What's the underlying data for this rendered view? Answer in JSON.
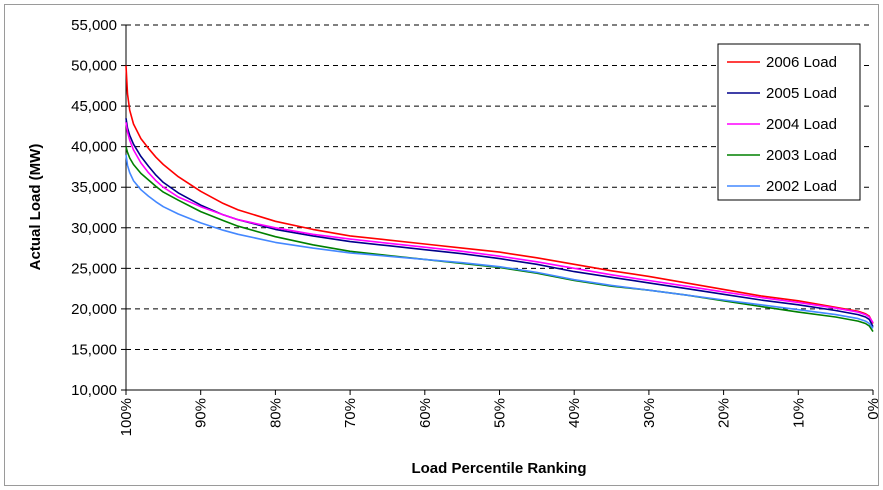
{
  "chart_data": {
    "type": "line",
    "title": "",
    "xlabel": "Load Percentile Ranking",
    "ylabel": "Actual Load (MW)",
    "xlim": [
      100,
      0
    ],
    "ylim": [
      10000,
      55000
    ],
    "x_ticks": [
      100,
      90,
      80,
      70,
      60,
      50,
      40,
      30,
      20,
      10,
      0
    ],
    "x_tick_labels": [
      "100%",
      "90%",
      "80%",
      "70%",
      "60%",
      "50%",
      "40%",
      "30%",
      "20%",
      "10%",
      "0%"
    ],
    "y_ticks": [
      10000,
      15000,
      20000,
      25000,
      30000,
      35000,
      40000,
      45000,
      50000,
      55000
    ],
    "y_tick_labels": [
      "10,000",
      "15,000",
      "20,000",
      "25,000",
      "30,000",
      "35,000",
      "40,000",
      "45,000",
      "50,000",
      "55,000"
    ],
    "grid": "horizontal dashed",
    "legend": "top-right",
    "series": [
      {
        "name": "2006 Load",
        "color": "#ff0000",
        "x": [
          100,
          99.8,
          99.5,
          99,
          98,
          97,
          96,
          95,
          93,
          90,
          87,
          85,
          80,
          75,
          70,
          65,
          60,
          55,
          50,
          45,
          40,
          35,
          30,
          25,
          20,
          15,
          10,
          5,
          2,
          1,
          0.5,
          0
        ],
        "y": [
          50000,
          46500,
          44500,
          42800,
          41000,
          39800,
          38700,
          37800,
          36300,
          34500,
          33000,
          32200,
          30800,
          29800,
          29000,
          28500,
          28000,
          27500,
          27000,
          26300,
          25500,
          24700,
          24000,
          23200,
          22400,
          21600,
          21000,
          20200,
          19700,
          19400,
          19100,
          18200
        ]
      },
      {
        "name": "2005 Load",
        "color": "#00008b",
        "x": [
          100,
          99.8,
          99.5,
          99,
          98,
          97,
          96,
          95,
          93,
          90,
          87,
          85,
          80,
          75,
          70,
          65,
          60,
          55,
          50,
          45,
          40,
          35,
          30,
          25,
          20,
          15,
          10,
          5,
          2,
          1,
          0.5,
          0
        ],
        "y": [
          43500,
          42300,
          41400,
          40300,
          38800,
          37600,
          36500,
          35600,
          34300,
          32800,
          31600,
          31000,
          29800,
          29000,
          28300,
          27800,
          27300,
          26800,
          26200,
          25500,
          24600,
          23900,
          23200,
          22500,
          21800,
          21100,
          20500,
          19800,
          19300,
          19000,
          18700,
          17800
        ]
      },
      {
        "name": "2004 Load",
        "color": "#ff00ff",
        "x": [
          100,
          99.8,
          99.5,
          99,
          98,
          97,
          96,
          95,
          93,
          90,
          87,
          85,
          80,
          75,
          70,
          65,
          60,
          55,
          50,
          45,
          40,
          35,
          30,
          25,
          20,
          15,
          10,
          5,
          2,
          1,
          0.5,
          0
        ],
        "y": [
          43000,
          41800,
          40800,
          39600,
          38000,
          36800,
          35800,
          35000,
          33800,
          32600,
          31600,
          31000,
          30000,
          29200,
          28600,
          28100,
          27600,
          27100,
          26500,
          25800,
          25000,
          24200,
          23500,
          22800,
          22100,
          21400,
          20800,
          20100,
          19600,
          19300,
          19000,
          18300
        ]
      },
      {
        "name": "2003 Load",
        "color": "#008000",
        "x": [
          100,
          99.8,
          99.5,
          99,
          98,
          97,
          96,
          95,
          93,
          90,
          87,
          85,
          80,
          75,
          70,
          65,
          60,
          55,
          50,
          45,
          40,
          35,
          30,
          25,
          20,
          15,
          10,
          5,
          2,
          1,
          0.5,
          0
        ],
        "y": [
          40000,
          39300,
          38600,
          37800,
          36700,
          35900,
          35100,
          34400,
          33400,
          32000,
          30900,
          30200,
          28900,
          27900,
          27100,
          26600,
          26100,
          25600,
          25100,
          24400,
          23500,
          22800,
          22300,
          21700,
          21000,
          20300,
          19600,
          19000,
          18500,
          18200,
          17900,
          17200
        ]
      },
      {
        "name": "2002 Load",
        "color": "#4488ff",
        "x": [
          100,
          99.8,
          99.5,
          99,
          98,
          97,
          96,
          95,
          93,
          90,
          87,
          85,
          80,
          75,
          70,
          65,
          60,
          55,
          50,
          45,
          40,
          35,
          30,
          25,
          20,
          15,
          10,
          5,
          2,
          1,
          0.5,
          0
        ],
        "y": [
          39000,
          37700,
          36800,
          35800,
          34700,
          33900,
          33200,
          32600,
          31700,
          30600,
          29700,
          29200,
          28200,
          27500,
          26900,
          26500,
          26100,
          25700,
          25200,
          24500,
          23600,
          22900,
          22300,
          21700,
          21100,
          20500,
          19900,
          19300,
          18800,
          18500,
          18200,
          17600
        ]
      }
    ]
  }
}
